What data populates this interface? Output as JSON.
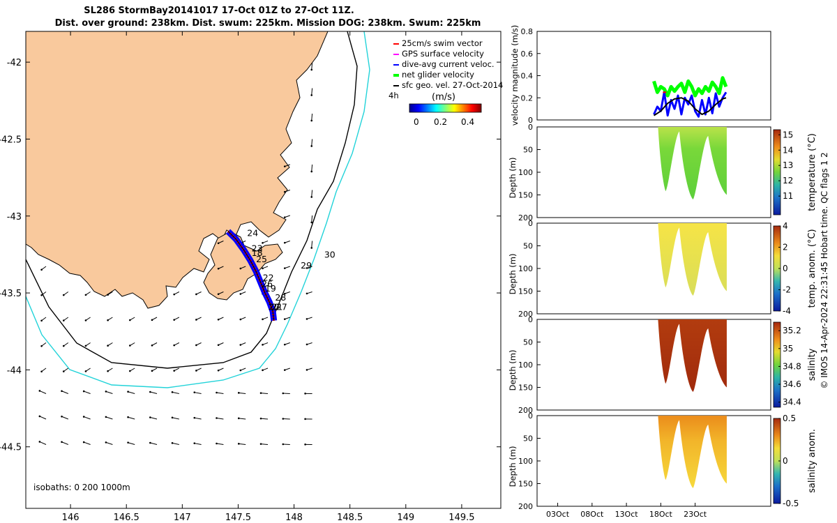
{
  "header": {
    "title_line1": "SL286 StormBay20141017 17-Oct 01Z to 27-Oct 11Z.",
    "title_line2": "Dist. over ground: 238km. Dist. swum: 225km. Mission DOG: 238km. Swum: 225km"
  },
  "colors": {
    "land": "#f9c99d",
    "sea": "#ffffff",
    "isobath_200": "#000000",
    "isobath_1000": "#22d3d9",
    "swim": "#ff0000",
    "gps": "#ff00ff",
    "dive_avg": "#0000ff",
    "net": "#00ff00",
    "geo": "#000000"
  },
  "map": {
    "legend": [
      {
        "label": "25cm/s swim vector",
        "color": "#ff0000"
      },
      {
        "label": "GPS surface velocity",
        "color": "#ff00ff"
      },
      {
        "label": "dive-avg current veloc.",
        "color": "#0000ff"
      },
      {
        "label": "net glider velocity",
        "color": "#00ff00"
      },
      {
        "label": "sfc geo. vel. 27-Oct-2014",
        "color": "#000000"
      }
    ],
    "colorbar_unit": "(m/s)",
    "colorbar_ticks": [
      "0",
      "0.2",
      "0.4"
    ],
    "time_note": "4h",
    "isobath_note": "isobaths: 0   200  1000m",
    "day_labels": [
      {
        "text": "24",
        "lon": 147.58,
        "lat": -43.13
      },
      {
        "text": "23",
        "lon": 147.62,
        "lat": -43.23
      },
      {
        "text": "18",
        "lon": 147.62,
        "lat": -43.26
      },
      {
        "text": "25",
        "lon": 147.66,
        "lat": -43.3
      },
      {
        "text": "22",
        "lon": 147.72,
        "lat": -43.42
      },
      {
        "text": "26",
        "lon": 147.71,
        "lat": -43.46
      },
      {
        "text": "19",
        "lon": 147.74,
        "lat": -43.49
      },
      {
        "text": "28",
        "lon": 147.83,
        "lat": -43.55
      },
      {
        "text": "21",
        "lon": 147.8,
        "lat": -43.61
      },
      {
        "text": "20",
        "lon": 147.77,
        "lat": -43.61
      },
      {
        "text": "27",
        "lon": 147.84,
        "lat": -43.61
      },
      {
        "text": "29",
        "lon": 148.06,
        "lat": -43.34
      },
      {
        "text": "30",
        "lon": 148.27,
        "lat": -43.27
      }
    ]
  },
  "chart_data": [
    {
      "type": "line",
      "panel": "map",
      "xlabel": "",
      "ylabel": "",
      "xlim": [
        145.6,
        149.85
      ],
      "ylim": [
        -44.9,
        -41.8
      ],
      "x_ticks": [
        146,
        146.5,
        147,
        147.5,
        148,
        148.5,
        149,
        149.5
      ],
      "x_tick_labels": [
        "146",
        "146.5",
        "147",
        "147.5",
        "148",
        "148.5",
        "149",
        "149.5"
      ],
      "y_ticks": [
        -42,
        -42.5,
        -43,
        -43.5,
        -44,
        -44.5
      ],
      "y_tick_labels": [
        "-42",
        "-42.5",
        "-43",
        "-43.5",
        "-44",
        "-44.5"
      ],
      "glider_track": {
        "lon": [
          147.41,
          147.48,
          147.55,
          147.61,
          147.66,
          147.7,
          147.74,
          147.78,
          147.81,
          147.82
        ],
        "lat": [
          -43.1,
          -43.15,
          -43.22,
          -43.29,
          -43.36,
          -43.43,
          -43.5,
          -43.56,
          -43.62,
          -43.68
        ]
      }
    },
    {
      "type": "line",
      "panel": "velocity",
      "ylabel": "velocity magnitude (m/s)",
      "xlim": [
        0,
        34
      ],
      "ylim": [
        0,
        0.8
      ],
      "y_ticks": [
        0,
        0.2,
        0.4,
        0.6,
        0.8
      ],
      "series": [
        {
          "name": "net glider velocity",
          "x": [
            17.0,
            17.5,
            18.0,
            18.5,
            19.0,
            19.5,
            20.0,
            20.5,
            21.0,
            21.5,
            22.0,
            22.5,
            23.0,
            23.5,
            24.0,
            24.5,
            25.0,
            25.5,
            26.0,
            26.5,
            27.0,
            27.5
          ],
          "values": [
            0.35,
            0.25,
            0.3,
            0.28,
            0.22,
            0.3,
            0.26,
            0.3,
            0.33,
            0.25,
            0.35,
            0.3,
            0.22,
            0.28,
            0.24,
            0.3,
            0.26,
            0.34,
            0.3,
            0.24,
            0.38,
            0.3
          ]
        },
        {
          "name": "dive-avg current veloc.",
          "x": [
            17.0,
            17.5,
            18.0,
            18.5,
            19.0,
            19.5,
            20.0,
            20.5,
            21.0,
            21.5,
            22.0,
            22.5,
            23.0,
            23.5,
            24.0,
            24.5,
            25.0,
            25.5,
            26.0,
            26.5,
            27.0,
            27.5
          ],
          "values": [
            0.05,
            0.12,
            0.08,
            0.25,
            0.04,
            0.18,
            0.1,
            0.22,
            0.05,
            0.2,
            0.14,
            0.22,
            0.08,
            0.03,
            0.18,
            0.05,
            0.2,
            0.06,
            0.24,
            0.12,
            0.2,
            0.25
          ]
        },
        {
          "name": "sfc geo. vel. 27-Oct-2014",
          "x": [
            17.0,
            18.0,
            19.0,
            20.0,
            21.0,
            22.0,
            23.0,
            24.0,
            25.0,
            26.0,
            27.0,
            27.5
          ],
          "values": [
            0.04,
            0.08,
            0.15,
            0.19,
            0.2,
            0.17,
            0.1,
            0.05,
            0.08,
            0.14,
            0.19,
            0.2
          ]
        },
        {
          "name": "25cm/s swim vector",
          "x": [
            18.3,
            18.8
          ],
          "values": [
            0.25,
            0.25
          ]
        }
      ]
    },
    {
      "type": "heatmap",
      "panel": "temperature",
      "ylabel": "Depth (m)",
      "ylim": [
        200,
        0
      ],
      "y_ticks": [
        0,
        50,
        100,
        150,
        200
      ],
      "colorbar_label": "temperature (°C)",
      "colorbar_ticks": [
        11,
        12,
        13,
        14,
        15
      ],
      "colorbar_range": [
        10.3,
        15.3
      ]
    },
    {
      "type": "heatmap",
      "panel": "temperature anomaly",
      "ylabel": "Depth (m)",
      "ylim": [
        200,
        0
      ],
      "y_ticks": [
        0,
        50,
        100,
        150,
        200
      ],
      "colorbar_label": "temp. anom. (°C)",
      "colorbar_ticks": [
        -4,
        -2,
        0,
        2,
        4
      ],
      "colorbar_range": [
        -4,
        4
      ]
    },
    {
      "type": "heatmap",
      "panel": "salinity",
      "ylabel": "Depth (m)",
      "ylim": [
        200,
        0
      ],
      "y_ticks": [
        0,
        50,
        100,
        150,
        200
      ],
      "colorbar_label": "salinity",
      "colorbar_ticks": [
        34.4,
        34.6,
        34.8,
        35,
        35.2
      ],
      "colorbar_range": [
        34.35,
        35.3
      ]
    },
    {
      "type": "heatmap",
      "panel": "salinity anomaly",
      "ylabel": "Depth (m)",
      "ylim": [
        200,
        0
      ],
      "y_ticks": [
        0,
        50,
        100,
        150,
        200
      ],
      "colorbar_label": "salinity anom.",
      "colorbar_ticks": [
        -0.5,
        0,
        0.5
      ],
      "colorbar_range": [
        -0.5,
        0.5
      ],
      "x_ticks": [
        3,
        8,
        13,
        18,
        23
      ],
      "x_tick_labels": [
        "03Oct",
        "08Oct",
        "13Oct",
        "18Oct",
        "23Oct"
      ]
    }
  ],
  "sections": {
    "depth_tick_labels": [
      "0",
      "50",
      "100",
      "150",
      "200"
    ],
    "depth_label": "Depth (m)",
    "velocity_ylabel": "velocity magnitude (m/s)",
    "velocity_tick_labels": [
      "0",
      "0.2",
      "0.4",
      "0.6",
      "0.8"
    ],
    "date_tick_labels": [
      "03Oct",
      "08Oct",
      "13Oct",
      "18Oct",
      "23Oct"
    ],
    "cb_temp": {
      "label": "temperature (°C)",
      "ticks": [
        "15",
        "14",
        "13",
        "12",
        "11"
      ]
    },
    "cb_tanom": {
      "label": "temp. anom. (°C)",
      "ticks": [
        "4",
        "2",
        "0",
        "-2",
        "-4"
      ]
    },
    "cb_sal": {
      "label": "salinity",
      "ticks": [
        "35.2",
        "35",
        "34.8",
        "34.6",
        "34.4"
      ]
    },
    "cb_sanom": {
      "label": "salinity anom.",
      "ticks": [
        "0.5",
        "0",
        "-0.5"
      ]
    },
    "footer": "© IMOS 14-Apr-2024 22:31:45 Hobart time. QC flags 1  2"
  }
}
